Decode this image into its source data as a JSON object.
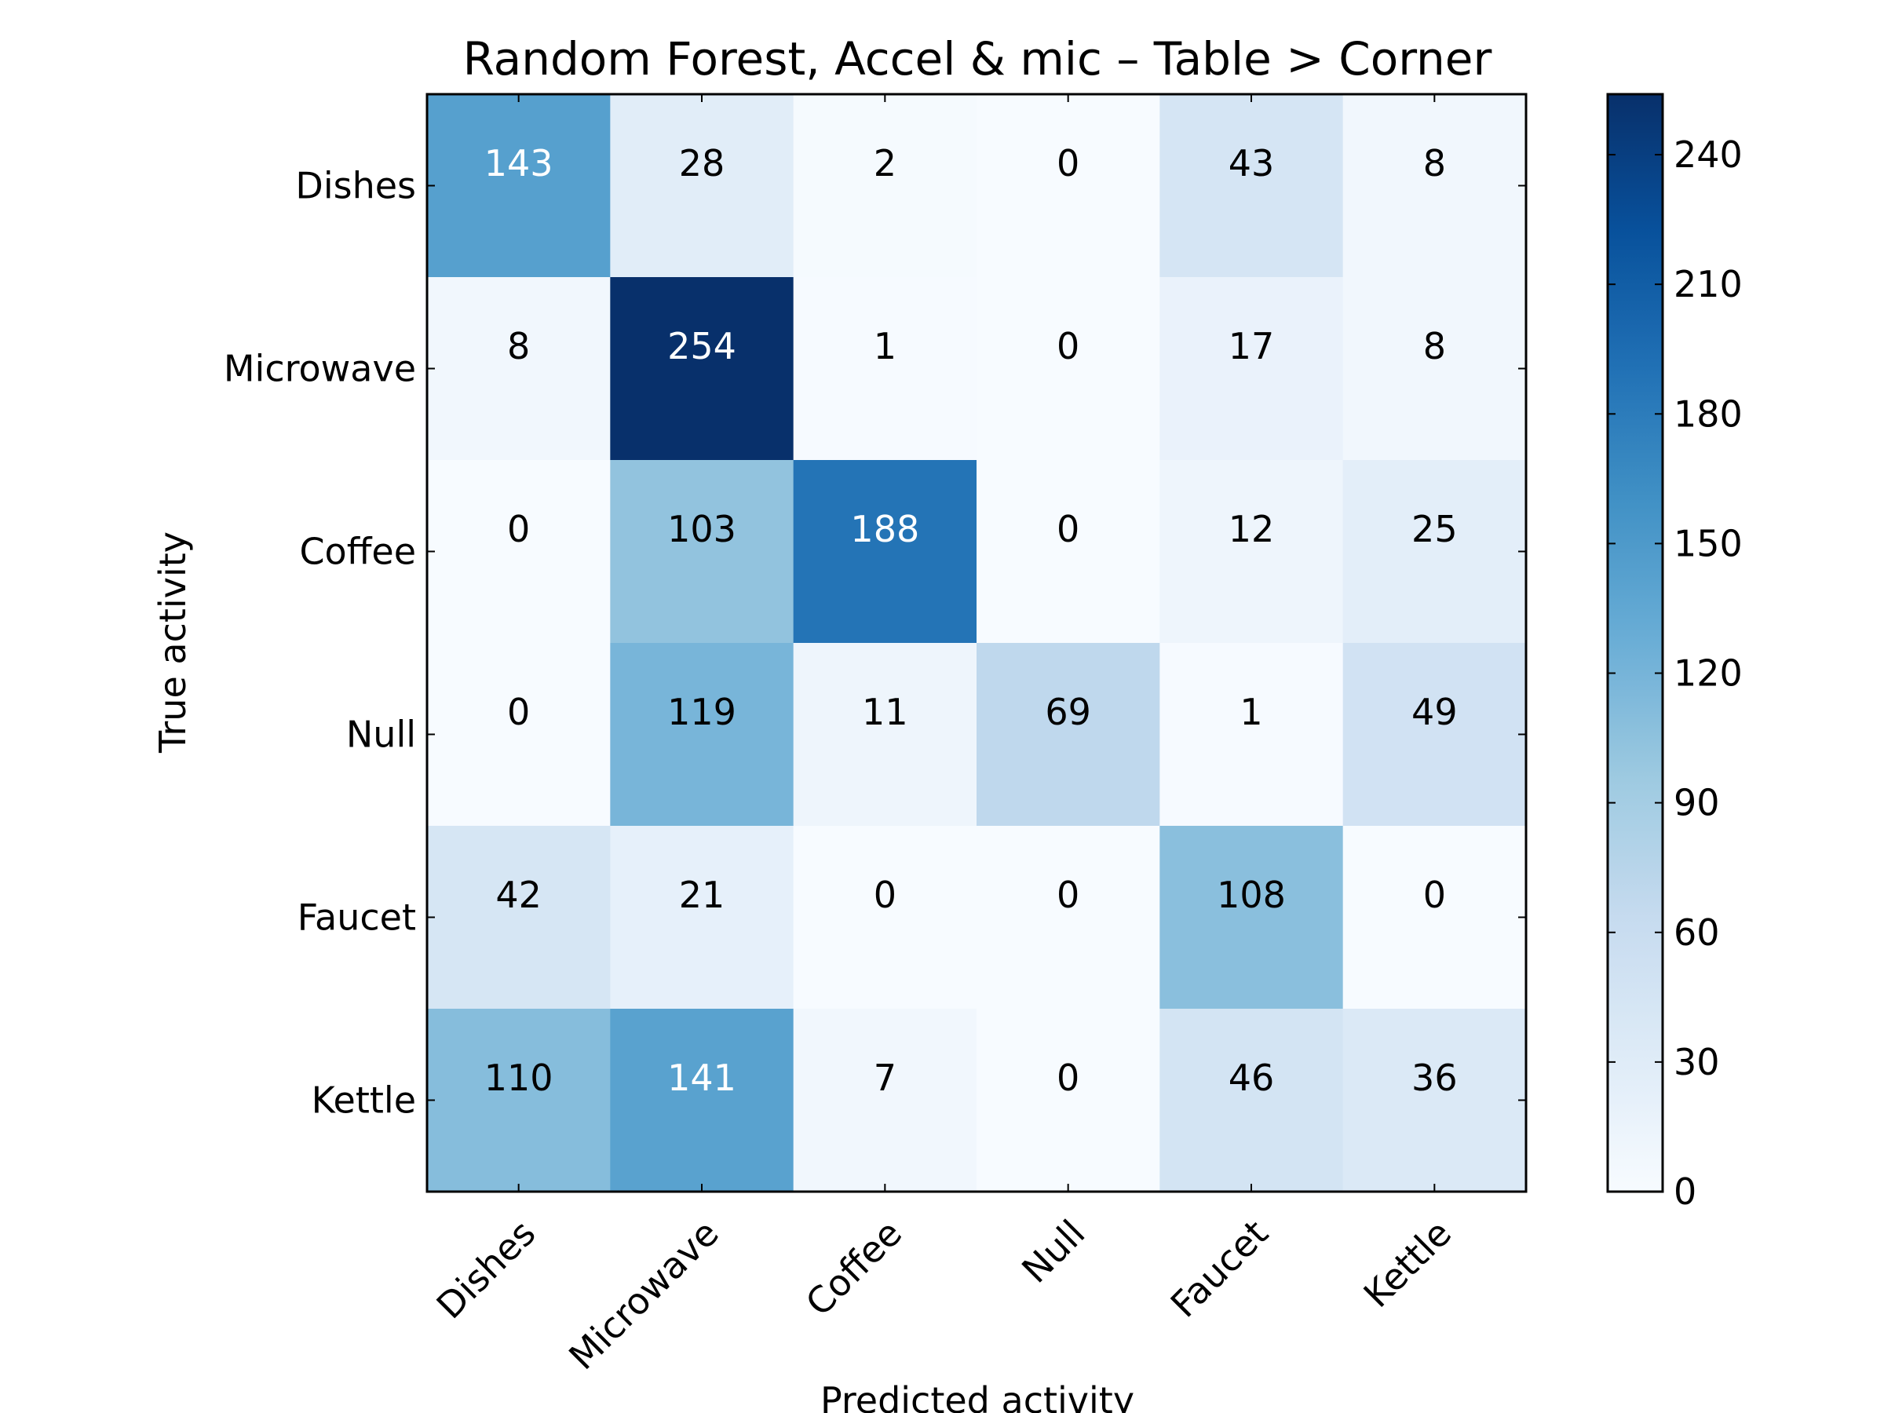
{
  "chart_data": {
    "type": "heatmap",
    "title": "Random Forest, Accel & mic – Table > Corner",
    "xlabel": "Predicted activity",
    "ylabel": "True activity",
    "x_categories": [
      "Dishes",
      "Microwave",
      "Coffee",
      "Null",
      "Faucet",
      "Kettle"
    ],
    "y_categories": [
      "Dishes",
      "Microwave",
      "Coffee",
      "Null",
      "Faucet",
      "Kettle"
    ],
    "values": [
      [
        143,
        28,
        2,
        0,
        43,
        8
      ],
      [
        8,
        254,
        1,
        0,
        17,
        8
      ],
      [
        0,
        103,
        188,
        0,
        12,
        25
      ],
      [
        0,
        119,
        11,
        69,
        1,
        49
      ],
      [
        42,
        21,
        0,
        0,
        108,
        0
      ],
      [
        110,
        141,
        7,
        0,
        46,
        36
      ]
    ],
    "colorbar": {
      "range": [
        0,
        254
      ],
      "ticks": [
        0,
        30,
        60,
        90,
        120,
        150,
        180,
        210,
        240
      ]
    },
    "colormap": "Blues"
  }
}
